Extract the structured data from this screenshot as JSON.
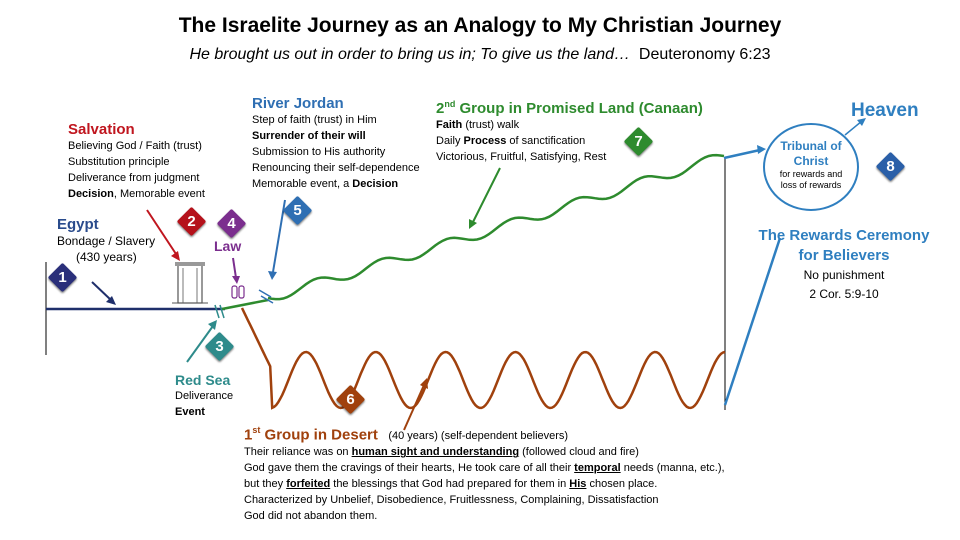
{
  "title": "The Israelite Journey as an Analogy to My Christian Journey",
  "subtitle": {
    "italic": "He brought us out in order to bring us in; To give us the land…",
    "ref": "Deuteronomy 6:23"
  },
  "egypt": {
    "head": "Egypt",
    "lines": [
      "Bondage / Slavery",
      "(430 years)"
    ]
  },
  "salvation": {
    "head": "Salvation",
    "lines": [
      "Believing God / Faith  (trust)",
      "Substitution  principle",
      "Deliverance from judgment"
    ],
    "last_bold": "Decision",
    "last_rest": ",  Memorable event"
  },
  "law": {
    "label": "Law"
  },
  "jordan": {
    "head": "River Jordan",
    "line1": "Step of faith  (trust)  in Him",
    "line2": "Surrender  of their will",
    "line3": "Submission to His authority",
    "line4": "Renouncing  their  self-dependence",
    "line5_rest": "Memorable event, a ",
    "line5_bold": "Decision"
  },
  "group2": {
    "head_sup": "nd",
    "head_num": "2",
    "head_rest": " Group in Promised Land (Canaan)",
    "l1_bold": "Faith",
    "l1_rest": " (trust)  walk",
    "l2_pre": "Daily ",
    "l2_bold": "Process",
    "l2_rest": "  of  sanctification",
    "l3": "Victorious,  Fruitful,  Satisfying,  Rest"
  },
  "heaven": {
    "label": "Heaven"
  },
  "tribunal": {
    "line1": "Tribunal of",
    "line2": "Christ",
    "line3": "for rewards and",
    "line4": "loss of rewards"
  },
  "rewards": {
    "line1": "The Rewards Ceremony",
    "line2": "for Believers",
    "line3": "No punishment",
    "line4": "2 Cor. 5:9-10"
  },
  "redsea": {
    "head": "Red Sea",
    "line1": "Deliverance",
    "line2": "Event"
  },
  "group1": {
    "head_num": "1",
    "head_sup": "st",
    "head_rest": " Group in Desert",
    "head_note": "(40 years)  (self-dependent  believers)",
    "l1_pre": "Their reliance was on ",
    "l1_u": "human sight and understanding",
    "l1_rest": "  (followed  cloud and fire)",
    "l2_pre": "God gave them the cravings of their hearts, He took care of all their ",
    "l2_u": "temporal",
    "l2_rest": " needs  (manna, etc.),",
    "l3_pre": "but they ",
    "l3_u": "forfeited",
    "l3_mid": " the blessings that God had prepared for them in ",
    "l3_u2": "His",
    "l3_rest": " chosen place.",
    "l4": "Characterized  by Unbelief,  Disobedience,  Fruitlessness,  Complaining,  Dissatisfaction",
    "l5": "God did not abandon them."
  },
  "badges": [
    {
      "num": "1",
      "color": "#2a2f7a"
    },
    {
      "num": "2",
      "color": "#b5121b"
    },
    {
      "num": "3",
      "color": "#2e8b8b"
    },
    {
      "num": "4",
      "color": "#7b2e8e"
    },
    {
      "num": "5",
      "color": "#2f6fb3"
    },
    {
      "num": "6",
      "color": "#a0410d"
    },
    {
      "num": "7",
      "color": "#2e8b2e"
    },
    {
      "num": "8",
      "color": "#2a5fa8"
    }
  ],
  "colors": {
    "egypt": "#1f2f6b",
    "salvation": "#c0161f",
    "jordan": "#2f6fb3",
    "canaan": "#2e8b2e",
    "desert": "#a0410d",
    "heaven": "#2f7fc0",
    "redsea": "#2e8b8b",
    "law": "#7b2e8e"
  }
}
